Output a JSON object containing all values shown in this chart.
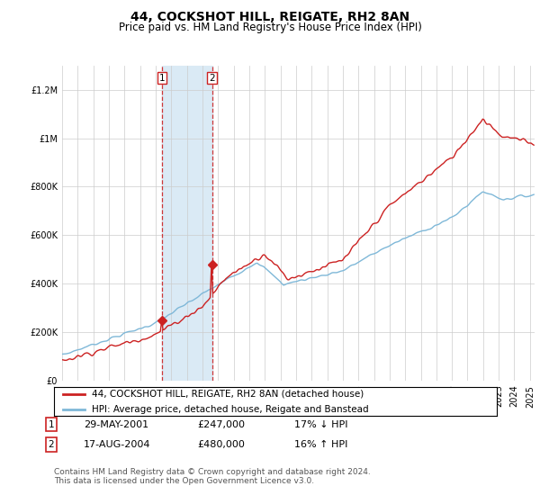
{
  "title": "44, COCKSHOT HILL, REIGATE, RH2 8AN",
  "subtitle": "Price paid vs. HM Land Registry's House Price Index (HPI)",
  "legend_line1": "44, COCKSHOT HILL, REIGATE, RH2 8AN (detached house)",
  "legend_line2": "HPI: Average price, detached house, Reigate and Banstead",
  "transaction1_label": "1",
  "transaction1_date": "29-MAY-2001",
  "transaction1_price": "£247,000",
  "transaction1_hpi": "17% ↓ HPI",
  "transaction2_label": "2",
  "transaction2_date": "17-AUG-2004",
  "transaction2_price": "£480,000",
  "transaction2_hpi": "16% ↑ HPI",
  "footer": "Contains HM Land Registry data © Crown copyright and database right 2024.\nThis data is licensed under the Open Government Licence v3.0.",
  "hpi_color": "#7fb8d8",
  "price_color": "#cc2222",
  "transaction_marker_color": "#cc2222",
  "shading_color": "#daeaf5",
  "ylim": [
    0,
    1300000
  ],
  "yticks": [
    0,
    200000,
    400000,
    600000,
    800000,
    1000000,
    1200000
  ],
  "transaction1_year": 2001.4,
  "transaction1_value": 247000,
  "transaction2_year": 2004.62,
  "transaction2_value": 480000,
  "xmin": 1995,
  "xmax": 2025.3
}
